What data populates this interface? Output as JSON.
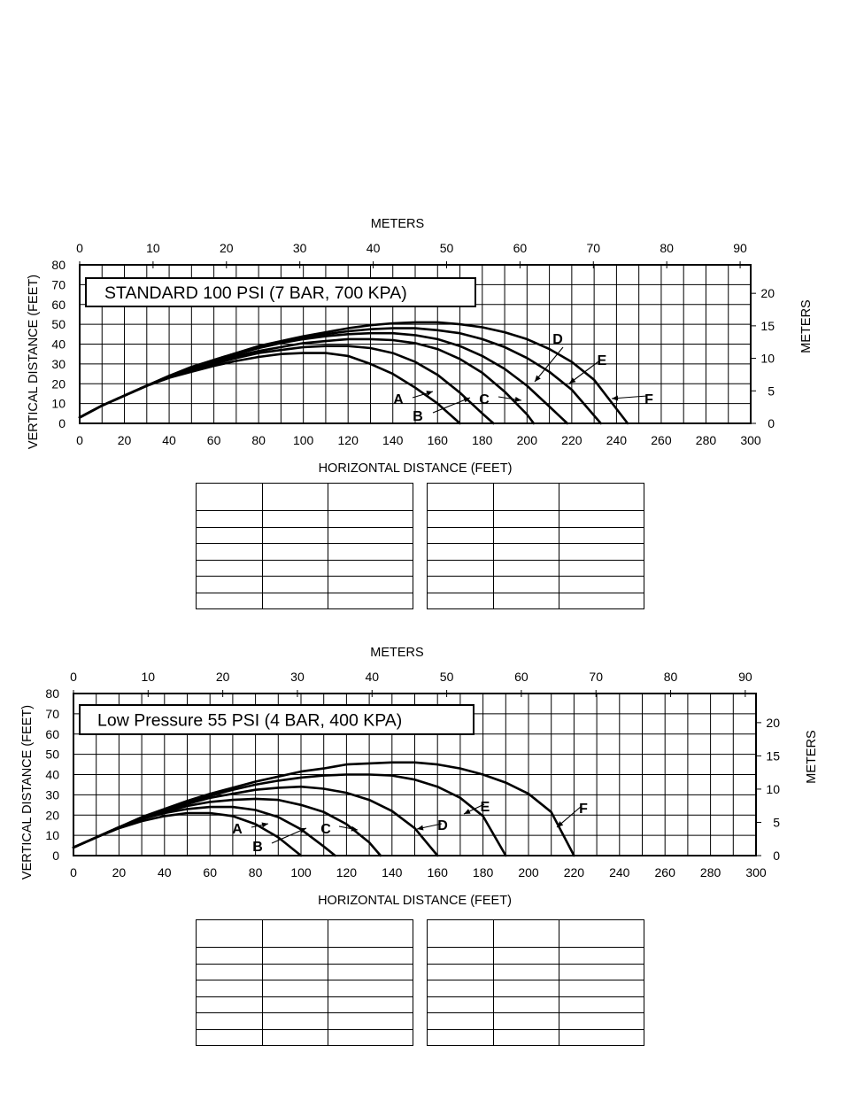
{
  "chart_data": [
    {
      "type": "line",
      "title": "STANDARD 100 PSI (7 BAR, 700 KPA)",
      "xlabel": "HORIZONTAL DISTANCE (FEET)",
      "ylabel": "VERTICAL DISTANCE (FEET)",
      "x2label": "METERS",
      "y2label": "METERS",
      "xlim": [
        0,
        300
      ],
      "ylim": [
        0,
        80
      ],
      "x2lim": [
        0,
        91.44
      ],
      "y2lim": [
        0,
        24.38
      ],
      "grid": true,
      "x_ticks": [
        "0",
        "20",
        "40",
        "60",
        "80",
        "100",
        "120",
        "140",
        "160",
        "180",
        "200",
        "220",
        "240",
        "260",
        "280",
        "300"
      ],
      "y_ticks": [
        "0",
        "10",
        "20",
        "30",
        "40",
        "50",
        "60",
        "70",
        "80"
      ],
      "x2_ticks": [
        "0",
        "10",
        "20",
        "30",
        "40",
        "50",
        "60",
        "70",
        "80",
        "90"
      ],
      "y2_ticks": [
        "0",
        "5",
        "10",
        "15",
        "20"
      ],
      "series": [
        {
          "name": "A",
          "x": [
            0,
            10,
            20,
            30,
            40,
            50,
            60,
            70,
            80,
            90,
            100,
            110,
            120,
            130,
            140,
            150,
            160,
            165,
            170
          ],
          "y": [
            3,
            9,
            14,
            19,
            23,
            26,
            29,
            31.5,
            33.5,
            35,
            35.5,
            35.5,
            34,
            30,
            25,
            18,
            10,
            5,
            0
          ]
        },
        {
          "name": "B",
          "x": [
            0,
            10,
            20,
            30,
            40,
            50,
            60,
            70,
            80,
            90,
            100,
            110,
            120,
            130,
            140,
            150,
            160,
            170,
            180,
            185
          ],
          "y": [
            3,
            9,
            14,
            19,
            23,
            27,
            30,
            33,
            35.5,
            37,
            38.5,
            39,
            39,
            38,
            35.5,
            31,
            24.5,
            15.5,
            5,
            0
          ]
        },
        {
          "name": "C",
          "x": [
            0,
            10,
            20,
            30,
            40,
            50,
            60,
            70,
            80,
            90,
            100,
            110,
            120,
            130,
            140,
            150,
            160,
            170,
            180,
            190,
            200,
            203
          ],
          "y": [
            3,
            9,
            14,
            19,
            23.5,
            27.5,
            31,
            34,
            36.5,
            38.5,
            40.5,
            41.5,
            42.5,
            42.5,
            42,
            40.5,
            37.5,
            32.5,
            25.5,
            16,
            4.5,
            0
          ]
        },
        {
          "name": "D",
          "x": [
            0,
            10,
            20,
            30,
            40,
            50,
            60,
            70,
            80,
            90,
            100,
            110,
            120,
            130,
            140,
            150,
            160,
            170,
            180,
            190,
            200,
            210,
            218
          ],
          "y": [
            3,
            9,
            14,
            19,
            23.5,
            28,
            31.5,
            35,
            38,
            40.5,
            42.5,
            44,
            45,
            45.5,
            45.5,
            44.5,
            42.5,
            39,
            34,
            27.5,
            19,
            8.5,
            0
          ]
        },
        {
          "name": "E",
          "x": [
            0,
            10,
            20,
            30,
            40,
            50,
            60,
            70,
            80,
            90,
            100,
            110,
            120,
            130,
            140,
            150,
            160,
            170,
            180,
            190,
            200,
            210,
            220,
            233
          ],
          "y": [
            3,
            9,
            14,
            19,
            24,
            28,
            32,
            35.5,
            38.5,
            41,
            43.5,
            45,
            46.5,
            47.5,
            48,
            48,
            47,
            45.5,
            42.5,
            38.5,
            33,
            26,
            17,
            0
          ]
        },
        {
          "name": "F",
          "x": [
            0,
            10,
            20,
            30,
            40,
            50,
            60,
            70,
            80,
            90,
            100,
            110,
            120,
            130,
            140,
            150,
            160,
            170,
            180,
            190,
            200,
            210,
            220,
            230,
            245
          ],
          "y": [
            3,
            9,
            14,
            19,
            24,
            28.5,
            32,
            35.5,
            39,
            41.5,
            44,
            46,
            48,
            49.5,
            50.5,
            51,
            51,
            50,
            48.5,
            46,
            42.5,
            37.5,
            31,
            22,
            0
          ]
        }
      ],
      "annotations": [
        "A",
        "B",
        "C",
        "D",
        "E",
        "F"
      ]
    },
    {
      "type": "line",
      "title": "Low Pressure 55 PSI (4 BAR, 400 KPA)",
      "xlabel": "HORIZONTAL DISTANCE (FEET)",
      "ylabel": "VERTICAL DISTANCE (FEET)",
      "x2label": "METERS",
      "y2label": "METERS",
      "xlim": [
        0,
        300
      ],
      "ylim": [
        0,
        80
      ],
      "x2lim": [
        0,
        91.44
      ],
      "y2lim": [
        0,
        24.38
      ],
      "grid": true,
      "x_ticks": [
        "0",
        "20",
        "40",
        "60",
        "80",
        "100",
        "120",
        "140",
        "160",
        "180",
        "200",
        "220",
        "240",
        "260",
        "280",
        "300"
      ],
      "y_ticks": [
        "0",
        "10",
        "20",
        "30",
        "40",
        "50",
        "60",
        "70",
        "80"
      ],
      "x2_ticks": [
        "0",
        "10",
        "20",
        "30",
        "40",
        "50",
        "60",
        "70",
        "80",
        "90"
      ],
      "y2_ticks": [
        "0",
        "5",
        "10",
        "15",
        "20"
      ],
      "series": [
        {
          "name": "A",
          "x": [
            0,
            10,
            20,
            30,
            40,
            50,
            60,
            70,
            80,
            90,
            100
          ],
          "y": [
            4,
            9,
            13.5,
            17,
            19.5,
            21,
            21,
            19.5,
            15.5,
            9,
            0
          ]
        },
        {
          "name": "B",
          "x": [
            0,
            10,
            20,
            30,
            40,
            50,
            60,
            70,
            80,
            90,
            100,
            110,
            115
          ],
          "y": [
            4,
            9,
            14,
            18,
            21,
            23,
            24,
            24,
            22.5,
            19,
            13,
            4.5,
            0
          ]
        },
        {
          "name": "C",
          "x": [
            0,
            10,
            20,
            30,
            40,
            50,
            60,
            70,
            80,
            90,
            100,
            110,
            120,
            130,
            135
          ],
          "y": [
            4,
            9,
            14,
            18,
            21.5,
            24.5,
            26.5,
            27.5,
            28,
            27.5,
            25,
            21.5,
            15.5,
            6.5,
            0
          ]
        },
        {
          "name": "D",
          "x": [
            0,
            10,
            20,
            30,
            40,
            50,
            60,
            70,
            80,
            90,
            100,
            110,
            120,
            130,
            140,
            150,
            160
          ],
          "y": [
            4,
            9,
            14,
            18.5,
            22,
            25.5,
            28.5,
            30.5,
            32.5,
            33.5,
            34,
            33,
            31,
            27.5,
            22,
            13.5,
            0
          ]
        },
        {
          "name": "E",
          "x": [
            0,
            10,
            20,
            30,
            40,
            50,
            60,
            70,
            80,
            90,
            100,
            110,
            120,
            130,
            140,
            150,
            160,
            170,
            180,
            190
          ],
          "y": [
            4,
            9,
            14,
            18.5,
            22.5,
            26,
            29.5,
            32.5,
            35,
            37,
            38.5,
            39.5,
            40,
            40,
            39.5,
            37.5,
            34,
            28.5,
            19.5,
            0
          ]
        },
        {
          "name": "F",
          "x": [
            0,
            10,
            20,
            30,
            40,
            50,
            60,
            70,
            80,
            90,
            100,
            110,
            120,
            130,
            140,
            150,
            160,
            170,
            180,
            190,
            200,
            210,
            220
          ],
          "y": [
            4,
            9,
            14,
            19,
            23,
            27,
            30.5,
            33.5,
            36.5,
            39,
            41.5,
            43,
            45,
            45.5,
            46,
            46,
            45,
            43,
            40,
            36,
            30.5,
            21.5,
            0
          ]
        }
      ],
      "annotations": [
        "A",
        "B",
        "C",
        "D",
        "E",
        "F"
      ]
    }
  ],
  "colors": {
    "ink": "#000000",
    "background": "#ffffff",
    "grid": "#000000"
  }
}
